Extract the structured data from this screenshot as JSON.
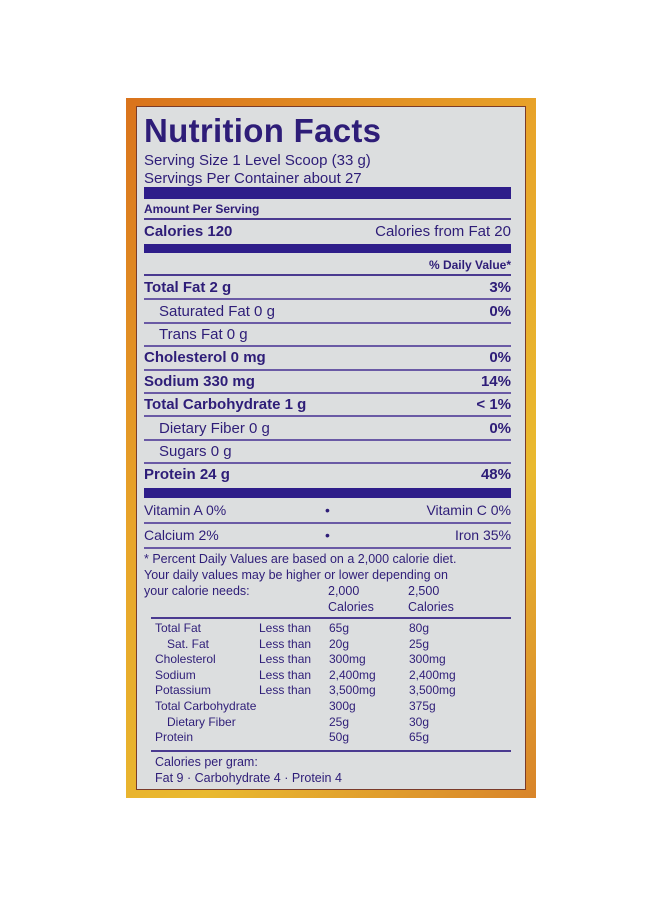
{
  "title": "Nutrition Facts",
  "serving_size": "Serving Size 1 Level Scoop (33 g)",
  "servings_per_container": "Servings Per Container about 27",
  "amount_per_serving": "Amount Per Serving",
  "calories": "Calories 120",
  "calories_from_fat": "Calories from Fat 20",
  "daily_value_header": "% Daily Value*",
  "nutrients": [
    {
      "label": "Total Fat 2 g",
      "dv": "3%",
      "bold": true,
      "indent": false
    },
    {
      "label": "Saturated Fat 0 g",
      "dv": "0%",
      "bold": false,
      "indent": true
    },
    {
      "label": "Trans Fat 0 g",
      "dv": "",
      "bold": false,
      "indent": true
    },
    {
      "label": "Cholesterol 0 mg",
      "dv": "0%",
      "bold": true,
      "indent": false
    },
    {
      "label": "Sodium 330 mg",
      "dv": "14%",
      "bold": true,
      "indent": false
    },
    {
      "label": "Total Carbohydrate 1 g",
      "dv": "< 1%",
      "bold": true,
      "indent": false
    },
    {
      "label": "Dietary Fiber 0 g",
      "dv": "0%",
      "bold": false,
      "indent": true
    },
    {
      "label": "Sugars 0 g",
      "dv": "",
      "bold": false,
      "indent": true
    },
    {
      "label": "Protein 24 g",
      "dv": "48%",
      "bold": true,
      "indent": false
    }
  ],
  "vitamins": [
    {
      "left": "Vitamin A 0%",
      "sep": "•",
      "right": "Vitamin C 0%"
    },
    {
      "left": "Calcium 2%",
      "sep": "•",
      "right": "Iron 35%"
    }
  ],
  "footnote": [
    "* Percent Daily Values are based on a 2,000 calorie diet.",
    "Your daily values may be higher or lower depending on",
    "your calorie needs:"
  ],
  "columns": [
    {
      "top": "2,000",
      "bottom": "Calories"
    },
    {
      "top": "2,500",
      "bottom": "Calories"
    }
  ],
  "reference": [
    [
      "Total Fat",
      "Less than",
      "65g",
      "80g"
    ],
    [
      "  Sat. Fat",
      "Less than",
      "20g",
      "25g"
    ],
    [
      "Cholesterol",
      "Less than",
      "300mg",
      "300mg"
    ],
    [
      "Sodium",
      "Less than",
      "2,400mg",
      "2,400mg"
    ],
    [
      "Potassium",
      "Less than",
      "3,500mg",
      "3,500mg"
    ],
    [
      "Total Carbohydrate",
      "",
      "300g",
      "375g"
    ],
    [
      "  Dietary Fiber",
      "",
      "25g",
      "30g"
    ],
    [
      "Protein",
      "",
      "50g",
      "65g"
    ]
  ],
  "calories_per_gram": "Calories per gram:",
  "calories_per_gram_values": "Fat 9 · Carbohydrate 4 · Protein 4",
  "colors": {
    "ink": "#2e1d78",
    "border": "#e3a02a",
    "background": "#dcdedf"
  }
}
